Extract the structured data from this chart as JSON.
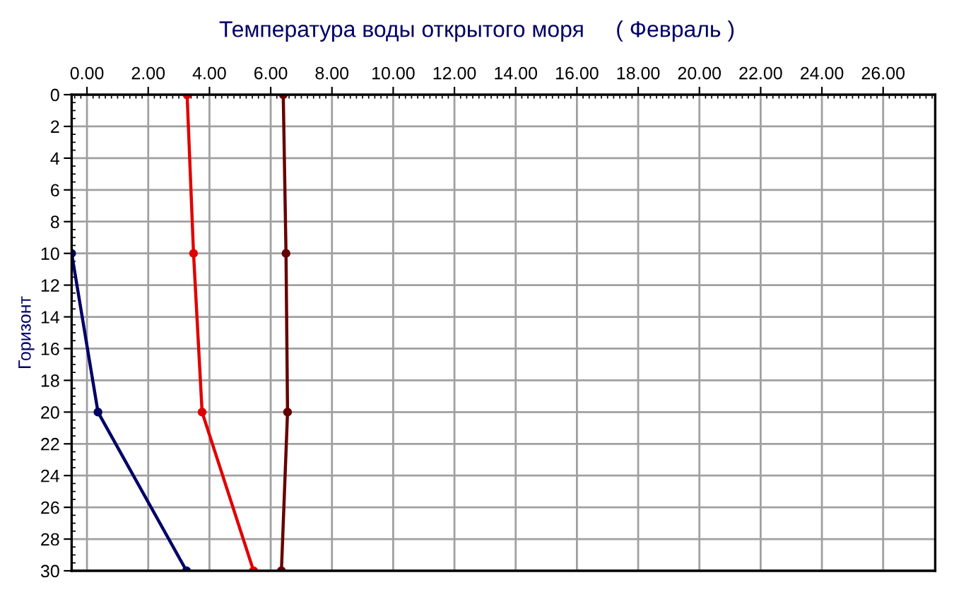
{
  "chart_data": {
    "type": "line",
    "title": "Температура воды открытого моря     ( Февраль )",
    "ylabel": "Горизонт",
    "orientation": "horizontal",
    "x": [
      0,
      10,
      20,
      30
    ],
    "series": [
      {
        "color": "#000066",
        "values": [
          null,
          -0.5,
          0.36,
          3.25
        ]
      },
      {
        "color": "#e00000",
        "values": [
          3.27,
          3.48,
          3.76,
          5.44
        ]
      },
      {
        "color": "#660000",
        "values": [
          6.41,
          6.5,
          6.55,
          6.35
        ]
      }
    ],
    "xlim": [
      -0.5,
      27.7
    ],
    "xticks": [
      {
        "value": 0,
        "label": "0.00"
      },
      {
        "value": 2,
        "label": "2.00"
      },
      {
        "value": 4,
        "label": "4.00"
      },
      {
        "value": 6,
        "label": "6.00"
      },
      {
        "value": 8,
        "label": "8.00"
      },
      {
        "value": 10,
        "label": "10.00"
      },
      {
        "value": 12,
        "label": "12.00"
      },
      {
        "value": 14,
        "label": "14.00"
      },
      {
        "value": 16,
        "label": "16.00"
      },
      {
        "value": 18,
        "label": "18.00"
      },
      {
        "value": 20,
        "label": "20.00"
      },
      {
        "value": 22,
        "label": "22.00"
      },
      {
        "value": 24,
        "label": "24.00"
      },
      {
        "value": 26,
        "label": "26.00"
      }
    ],
    "ylim": [
      30,
      0
    ],
    "yticks": [
      0,
      2,
      4,
      6,
      8,
      10,
      12,
      14,
      16,
      18,
      20,
      22,
      24,
      26,
      28,
      30
    ],
    "grid": true,
    "marker": "circle",
    "line_style": "solid",
    "legend": false
  }
}
